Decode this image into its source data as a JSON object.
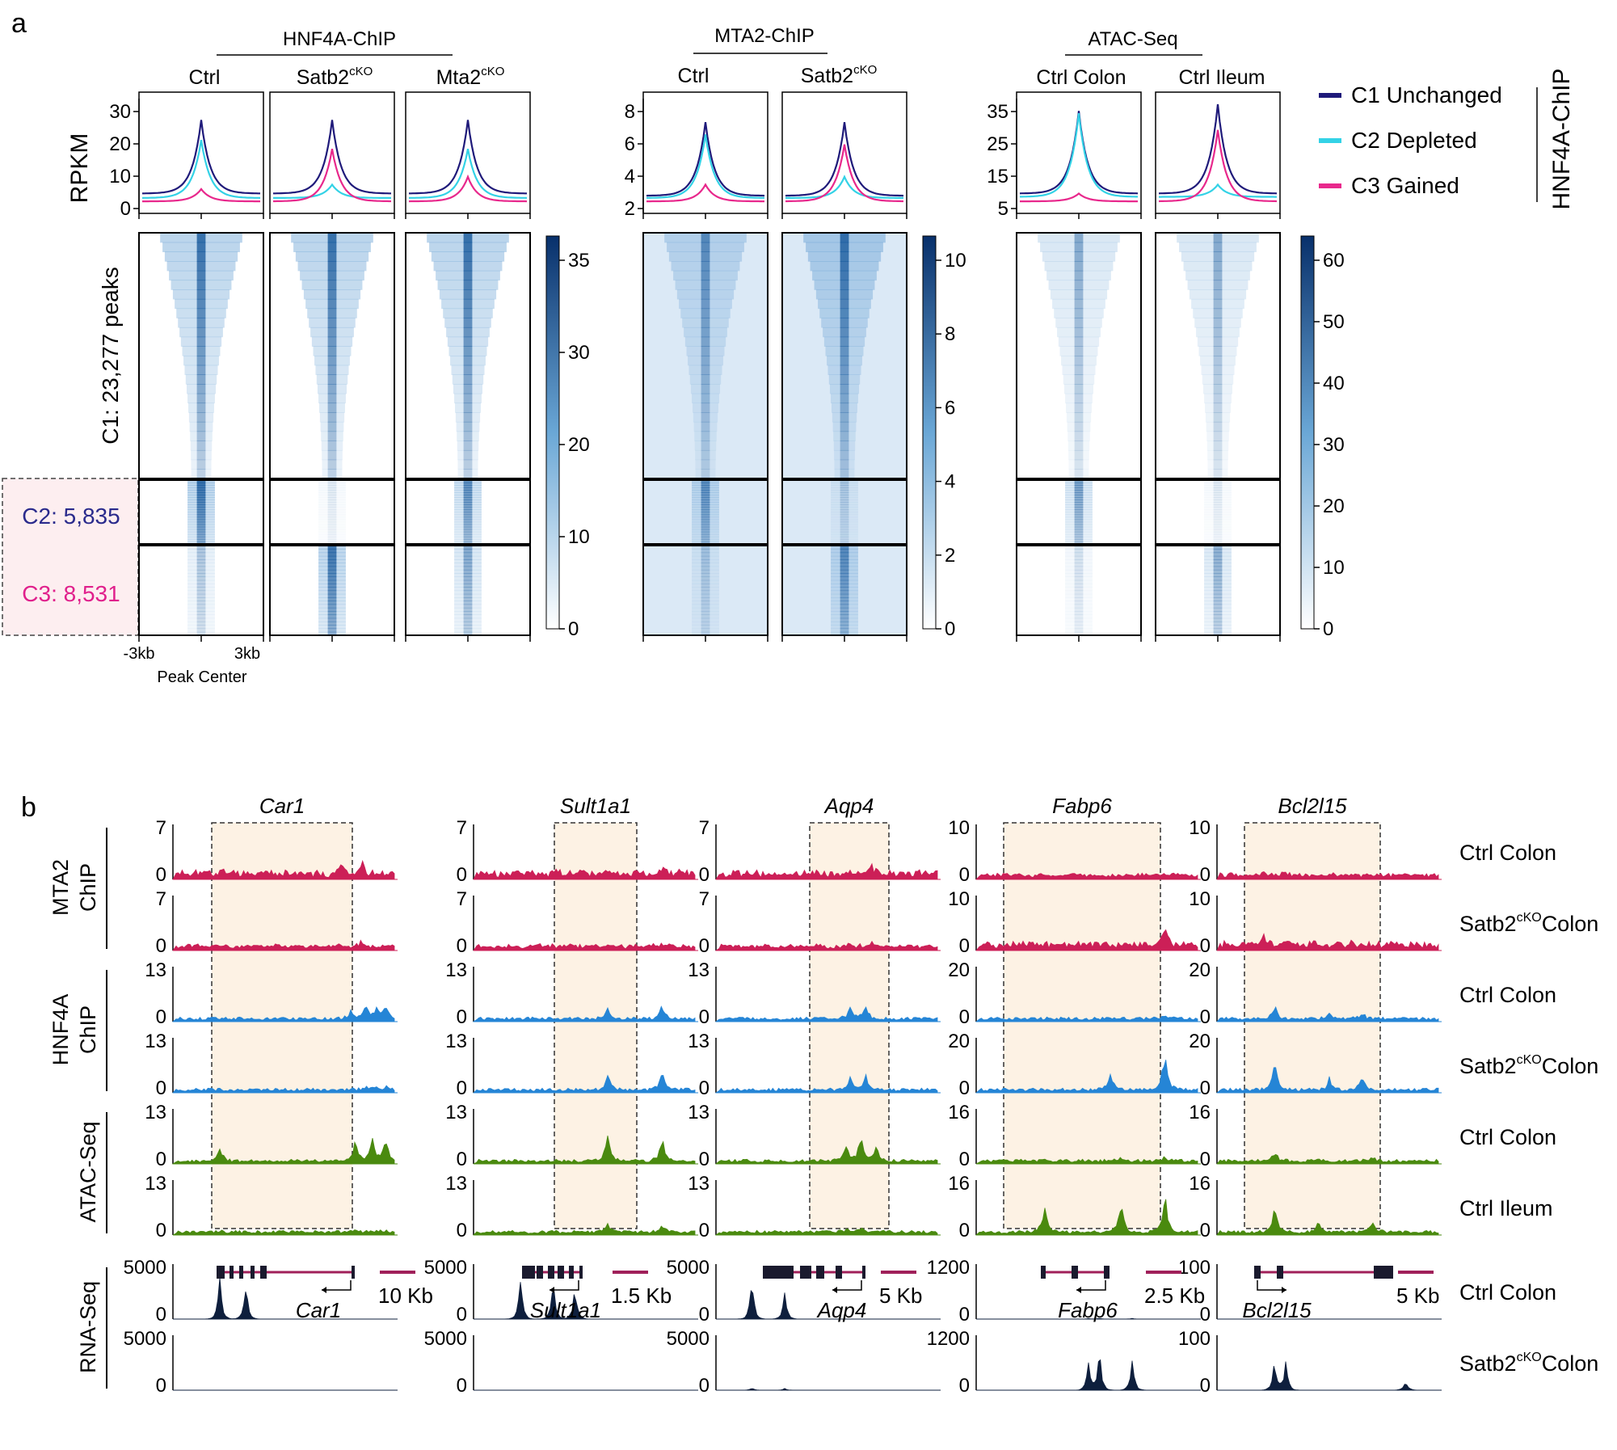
{
  "panel_a": {
    "letter": "a",
    "groups": [
      {
        "title": "HNF4A-ChIP",
        "cols": [
          {
            "base": "Ctrl",
            "sup": ""
          },
          {
            "base": "Satb2",
            "sup": "cKO"
          },
          {
            "base": "Mta2",
            "sup": "cKO"
          }
        ],
        "yticks": [
          "30",
          "20",
          "10",
          "0"
        ],
        "colorbar": [
          "35",
          "30",
          "20",
          "10",
          "0"
        ],
        "scale": [
          1.0,
          1.0,
          1.0
        ]
      },
      {
        "title": "MTA2-ChIP",
        "cols": [
          {
            "base": "Ctrl",
            "sup": ""
          },
          {
            "base": "Satb2",
            "sup": "cKO"
          }
        ],
        "yticks": [
          "8",
          "6",
          "4",
          "2"
        ],
        "colorbar": [
          "10",
          "8",
          "6",
          "4",
          "2",
          "0"
        ],
        "scale": [
          0.62,
          1.0
        ]
      },
      {
        "title": "ATAC-Seq",
        "cols": [
          {
            "base": "Ctrl Colon",
            "sup": ""
          },
          {
            "base": "Ctrl Ileum",
            "sup": ""
          }
        ],
        "yticks": [
          "35",
          "25",
          "15",
          "5"
        ],
        "colorbar": [
          "60",
          "50",
          "40",
          "30",
          "20",
          "10",
          "0"
        ],
        "scale": [
          0.55,
          0.55
        ]
      }
    ],
    "ylabel": "RPKM",
    "row_labels": {
      "c1": "C1: 23,277 peaks",
      "c2": "C2: 5,835",
      "c3": "C3: 8,531"
    },
    "xaxis": {
      "left": "-3kb",
      "right": "3kb",
      "label": "Peak Center"
    },
    "legend": {
      "items": [
        {
          "label": "C1 Unchanged",
          "color": "#1f1a7a"
        },
        {
          "label": "C2 Depleted",
          "color": "#33d2e6"
        },
        {
          "label": "C3 Gained",
          "color": "#e8288c"
        }
      ],
      "side": "HNF4A-ChIP"
    }
  },
  "panel_b": {
    "letter": "b",
    "genes": [
      {
        "name": "Car1",
        "scale": "10 Kb"
      },
      {
        "name": "Sult1a1",
        "scale": "1.5 Kb"
      },
      {
        "name": "Aqp4",
        "scale": "5 Kb"
      },
      {
        "name": "Fabp6",
        "scale": "2.5 Kb"
      },
      {
        "name": "Bcl2l15",
        "scale": "5 Kb"
      }
    ],
    "row_groups": [
      {
        "label": "MTA2",
        "label2": "ChIP"
      },
      {
        "label": "HNF4A",
        "label2": "ChIP"
      },
      {
        "label": "ATAC-Seq",
        "label2": ""
      },
      {
        "label": "RNA-Seq",
        "label2": ""
      }
    ],
    "tracks": [
      {
        "base": "Ctrl Colon",
        "sup": "",
        "suffix": "",
        "color": "#cc1f57",
        "ymax": [
          "7",
          "7",
          "7",
          "10",
          "10"
        ]
      },
      {
        "base": "Satb2",
        "sup": "cKO",
        "suffix": "Colon",
        "color": "#cc1f57",
        "ymax": [
          "7",
          "7",
          "7",
          "10",
          "10"
        ]
      },
      {
        "base": "Ctrl Colon",
        "sup": "",
        "suffix": "",
        "color": "#2585d6",
        "ymax": [
          "13",
          "13",
          "13",
          "20",
          "20"
        ]
      },
      {
        "base": "Satb2",
        "sup": "cKO",
        "suffix": "Colon",
        "color": "#2585d6",
        "ymax": [
          "13",
          "13",
          "13",
          "20",
          "20"
        ]
      },
      {
        "base": "Ctrl Colon",
        "sup": "",
        "suffix": "",
        "color": "#4a8a0f",
        "ymax": [
          "13",
          "13",
          "13",
          "16",
          "16"
        ]
      },
      {
        "base": "Ctrl Ileum",
        "sup": "",
        "suffix": "",
        "color": "#4a8a0f",
        "ymax": [
          "13",
          "13",
          "13",
          "16",
          "16"
        ]
      },
      {
        "base": "Ctrl Colon",
        "sup": "",
        "suffix": "",
        "color": "#0e1f3d",
        "ymax": [
          "5000",
          "5000",
          "5000",
          "1200",
          "100"
        ]
      },
      {
        "base": "Satb2",
        "sup": "cKO",
        "suffix": "Colon",
        "color": "#0e1f3d",
        "ymax": [
          "5000",
          "5000",
          "5000",
          "1200",
          "100"
        ]
      }
    ],
    "zero": "0"
  },
  "colors": {
    "heat": "#08509a",
    "highlight": "#fdf2e4",
    "pinkbox": "#fdeef0",
    "c2text": "#2a2a8c",
    "c3text": "#e0208c",
    "gene_line": "#a0205a"
  }
}
